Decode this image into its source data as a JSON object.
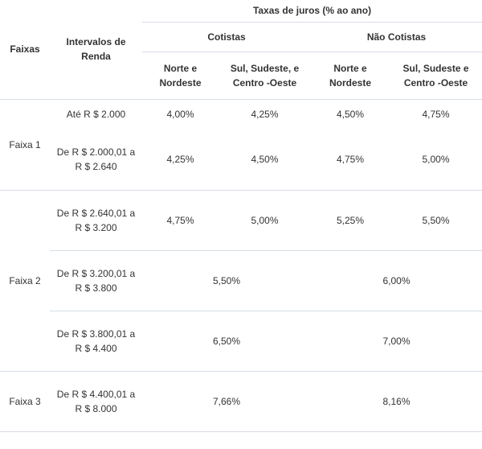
{
  "header": {
    "faixas": "Faixas",
    "intervalos": "Intervalos de Renda",
    "taxas": "Taxas de juros (% ao ano)",
    "cotistas": "Cotistas",
    "nao_cotistas": "Não Cotistas",
    "norte_nordeste": "Norte e Nordeste",
    "sul_sudeste": "Sul, Sudeste, e Centro -Oeste",
    "norte_nordeste_2": "Norte e Nordeste",
    "sul_sudeste_2": "Sul, Sudeste e Centro -Oeste"
  },
  "faixa1": {
    "label": "Faixa 1",
    "rows": [
      {
        "intervalo": "Até R $ 2.000",
        "cot_ne": "4,00%",
        "cot_sul": "4,25%",
        "nao_ne": "4,50%",
        "nao_sul": "4,75%"
      },
      {
        "intervalo": "De R $ 2.000,01 a R $ 2.640",
        "cot_ne": "4,25%",
        "cot_sul": "4,50%",
        "nao_ne": "4,75%",
        "nao_sul": "5,00%"
      }
    ]
  },
  "faixa2": {
    "label": "Faixa 2",
    "rows": [
      {
        "intervalo": "De R $ 2.640,01 a R $ 3.200",
        "cot_ne": "4,75%",
        "cot_sul": "5,00%",
        "nao_ne": "5,25%",
        "nao_sul": "5,50%"
      },
      {
        "intervalo": "De R $ 3.200,01 a R $ 3.800",
        "cotistas": "5,50%",
        "nao_cotistas": "6,00%"
      },
      {
        "intervalo": "De R $ 3.800,01 a R $ 4.400",
        "cotistas": "6,50%",
        "nao_cotistas": "7,00%"
      }
    ]
  },
  "faixa3": {
    "label": "Faixa 3",
    "rows": [
      {
        "intervalo": "De R $ 4.400,01 a R $ 8.000",
        "cotistas": "7,66%",
        "nao_cotistas": "8,16%"
      }
    ]
  }
}
